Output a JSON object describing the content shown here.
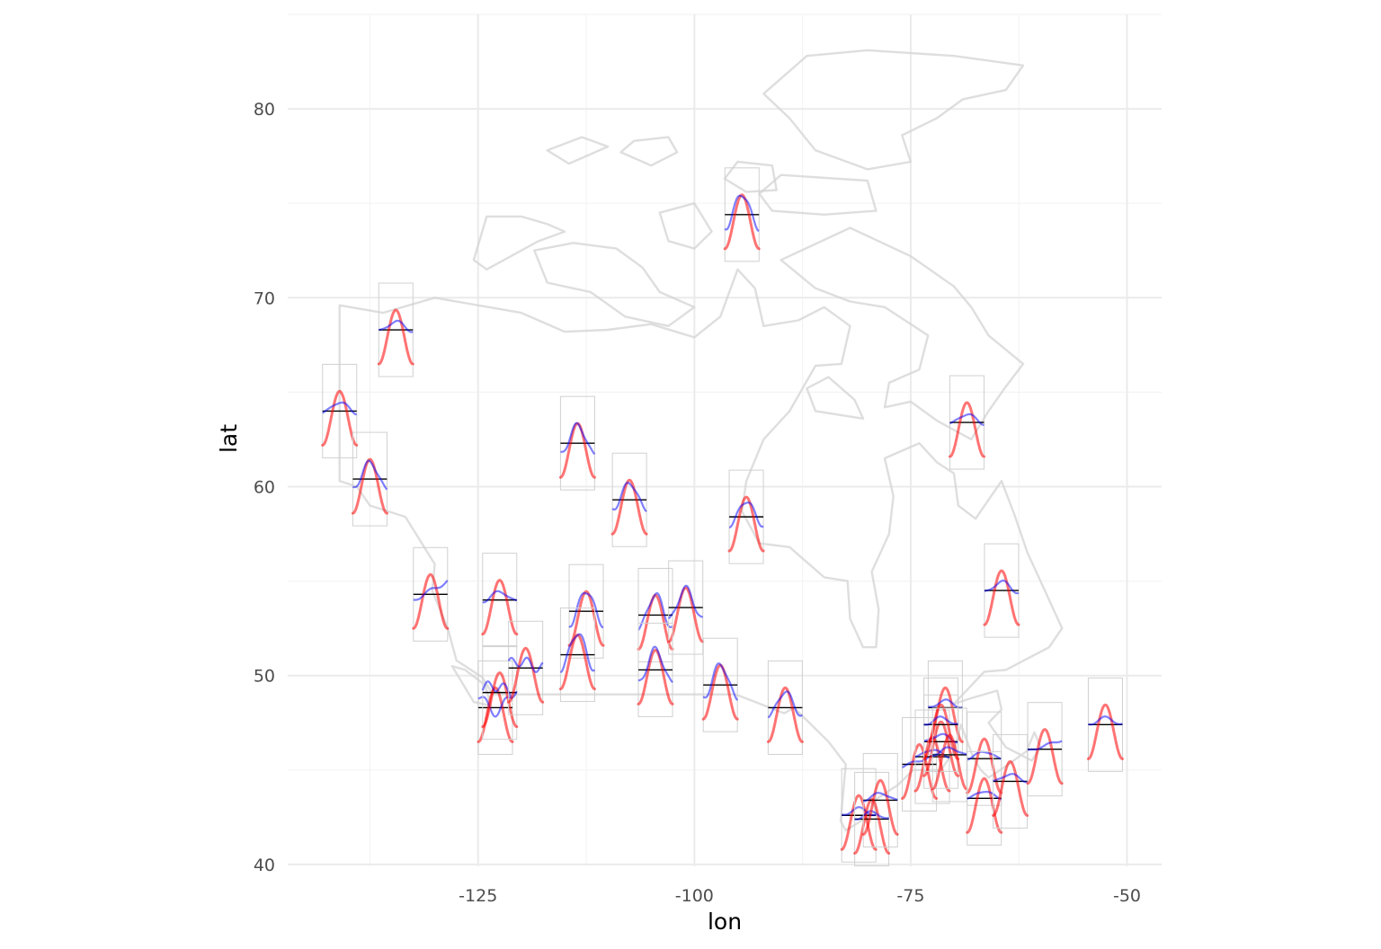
{
  "chart_data": {
    "type": "scatter",
    "subtype": "map with glyph mini-plots of seasonal temperature per station",
    "xlabel": "lon",
    "ylabel": "lat",
    "xlim": [
      -147,
      -46
    ],
    "ylim": [
      39.9,
      85
    ],
    "x_ticks": [
      -125,
      -100,
      -75,
      -50
    ],
    "x_tick_labels": [
      "-125",
      "-100",
      "-75",
      "-50"
    ],
    "y_ticks": [
      40,
      50,
      60,
      70,
      80
    ],
    "y_tick_labels": [
      "40",
      "50",
      "60",
      "70",
      "80"
    ],
    "grid": true,
    "legend": "none",
    "colors": {
      "panel_background": "#ffffff",
      "grid_major": "#ebebeb",
      "grid_minor": "#f4f4f4",
      "map_outline": "#d3d3d3",
      "glyph_box": "#d0d0d0",
      "reference_line": "#000000",
      "series_a": "#ff0000",
      "series_b": "#0000ff"
    },
    "series": [],
    "stations": [
      {
        "lon": -141.0,
        "lat": 64.0,
        "blue_shape": "flat",
        "blue_scale": 0.45
      },
      {
        "lon": -134.5,
        "lat": 68.3,
        "blue_shape": "flat",
        "blue_scale": 0.4
      },
      {
        "lon": -137.5,
        "lat": 60.4,
        "blue_shape": "peak",
        "blue_scale": 0.55
      },
      {
        "lon": -130.5,
        "lat": 54.3,
        "blue_shape": "rise",
        "blue_scale": 0.5
      },
      {
        "lon": -122.5,
        "lat": 54.0,
        "blue_shape": "flat",
        "blue_scale": 0.4
      },
      {
        "lon": -123.0,
        "lat": 48.3,
        "blue_shape": "dip",
        "blue_scale": 0.55
      },
      {
        "lon": -122.5,
        "lat": 49.1,
        "blue_shape": "wave",
        "blue_scale": 0.4
      },
      {
        "lon": -119.5,
        "lat": 50.4,
        "blue_shape": "wave",
        "blue_scale": 0.4
      },
      {
        "lon": -113.5,
        "lat": 62.3,
        "blue_shape": "peak",
        "blue_scale": 0.6
      },
      {
        "lon": -107.5,
        "lat": 59.3,
        "blue_shape": "peak",
        "blue_scale": 0.55
      },
      {
        "lon": -112.5,
        "lat": 53.4,
        "blue_shape": "peak",
        "blue_scale": 0.7
      },
      {
        "lon": -113.5,
        "lat": 51.1,
        "blue_shape": "peak",
        "blue_scale": 0.75
      },
      {
        "lon": -104.5,
        "lat": 53.2,
        "blue_shape": "peak",
        "blue_scale": 0.7
      },
      {
        "lon": -101.0,
        "lat": 53.6,
        "blue_shape": "peak",
        "blue_scale": 0.65
      },
      {
        "lon": -104.5,
        "lat": 50.3,
        "blue_shape": "peak",
        "blue_scale": 0.7
      },
      {
        "lon": -97.0,
        "lat": 49.5,
        "blue_shape": "peak",
        "blue_scale": 0.7
      },
      {
        "lon": -94.5,
        "lat": 74.4,
        "blue_shape": "peak",
        "blue_scale": 0.7
      },
      {
        "lon": -94.0,
        "lat": 58.4,
        "blue_shape": "peak",
        "blue_scale": 0.5
      },
      {
        "lon": -89.5,
        "lat": 48.3,
        "blue_shape": "peak",
        "blue_scale": 0.5
      },
      {
        "lon": -68.5,
        "lat": 63.4,
        "blue_shape": "flat",
        "blue_scale": 0.4
      },
      {
        "lon": -64.5,
        "lat": 54.5,
        "blue_shape": "flat",
        "blue_scale": 0.45
      },
      {
        "lon": -81.0,
        "lat": 42.6,
        "blue_shape": "flat",
        "blue_scale": 0.3
      },
      {
        "lon": -79.5,
        "lat": 42.4,
        "blue_shape": "flat",
        "blue_scale": 0.3
      },
      {
        "lon": -78.5,
        "lat": 43.4,
        "blue_shape": "flat",
        "blue_scale": 0.3
      },
      {
        "lon": -74.0,
        "lat": 45.3,
        "blue_shape": "rise",
        "blue_scale": 0.3
      },
      {
        "lon": -72.5,
        "lat": 45.7,
        "blue_shape": "flat",
        "blue_scale": 0.3
      },
      {
        "lon": -71.5,
        "lat": 46.5,
        "blue_shape": "flat",
        "blue_scale": 0.3
      },
      {
        "lon": -71.0,
        "lat": 48.3,
        "blue_shape": "flat",
        "blue_scale": 0.3
      },
      {
        "lon": -71.5,
        "lat": 47.4,
        "blue_shape": "flat",
        "blue_scale": 0.3
      },
      {
        "lon": -70.5,
        "lat": 45.8,
        "blue_shape": "flat",
        "blue_scale": 0.3
      },
      {
        "lon": -66.5,
        "lat": 45.6,
        "blue_shape": "flat",
        "blue_scale": 0.3
      },
      {
        "lon": -66.5,
        "lat": 43.5,
        "blue_shape": "flat",
        "blue_scale": 0.3
      },
      {
        "lon": -63.5,
        "lat": 44.4,
        "blue_shape": "flat",
        "blue_scale": 0.3
      },
      {
        "lon": -59.5,
        "lat": 46.1,
        "blue_shape": "rise",
        "blue_scale": 0.3
      },
      {
        "lon": -52.5,
        "lat": 47.4,
        "blue_shape": "flat",
        "blue_scale": 0.3
      }
    ]
  }
}
